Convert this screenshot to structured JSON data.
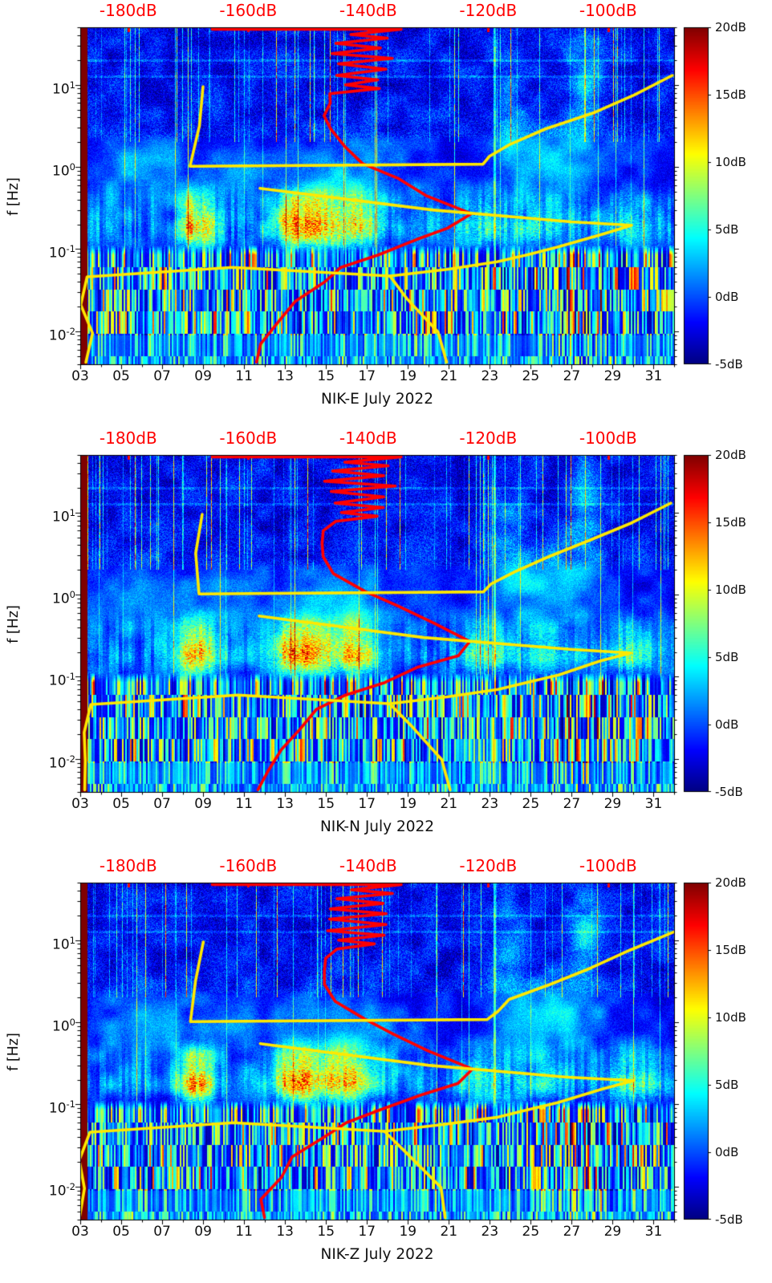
{
  "figure": {
    "background": "#ffffff"
  },
  "chart_data": {
    "type": "heatmap",
    "subtype": "seismic-noise-spectrogram-with-psd-curves",
    "panels": [
      {
        "id": "NIK-E",
        "xlabel": "NIK-E July 2022"
      },
      {
        "id": "NIK-N",
        "xlabel": "NIK-N July 2022"
      },
      {
        "id": "NIK-Z",
        "xlabel": "NIK-Z July 2022"
      }
    ],
    "x_ticks": [
      "03",
      "05",
      "07",
      "09",
      "11",
      "13",
      "15",
      "17",
      "19",
      "21",
      "23",
      "25",
      "27",
      "29",
      "31"
    ],
    "x_tick_days": [
      3,
      5,
      7,
      9,
      11,
      13,
      15,
      17,
      19,
      21,
      23,
      25,
      27,
      29,
      31
    ],
    "x_range_days": [
      3,
      32
    ],
    "ylabel": "f [Hz]",
    "y_ticks": [
      {
        "base": "10",
        "exp": "1",
        "value": 10
      },
      {
        "base": "10",
        "exp": "0",
        "value": 1
      },
      {
        "base": "10",
        "exp": "-1",
        "value": 0.1
      },
      {
        "base": "10",
        "exp": "-2",
        "value": 0.01
      }
    ],
    "f_range_hz": [
      0.004,
      50
    ],
    "top_axis": {
      "ticks": [
        "-180dB",
        "-160dB",
        "-140dB",
        "-120dB",
        "-100dB"
      ],
      "values": [
        -180,
        -160,
        -140,
        -120,
        -100
      ],
      "range_db": [
        -188,
        -89
      ],
      "color": "#ff0000"
    },
    "colorbar": {
      "ticks": [
        "20dB",
        "15dB",
        "10dB",
        "5dB",
        "0dB",
        "-5dB"
      ],
      "values": [
        20,
        15,
        10,
        5,
        0,
        -5
      ],
      "range_db": [
        -5,
        20
      ],
      "colormap": "jet"
    },
    "heatmap": {
      "colormap": "jet",
      "saturated_band_days": [
        3,
        3.33
      ],
      "microseism_band_hz": [
        0.1,
        0.4
      ],
      "storm_peak_days": [
        9,
        14.2,
        16.4,
        22.6,
        29.9
      ]
    },
    "curves": {
      "red": {
        "name": "median-psd-curve",
        "color": "#ff0000",
        "points_db_hz": [
          [
            -166,
            47.5
          ],
          [
            -134.5,
            47.5
          ],
          [
            -143,
            41
          ],
          [
            -136,
            37
          ],
          [
            -146,
            32
          ],
          [
            -137,
            28
          ],
          [
            -147,
            24
          ],
          [
            -136.5,
            21
          ],
          [
            -145.5,
            18
          ],
          [
            -137,
            15.5
          ],
          [
            -146,
            13
          ],
          [
            -138,
            11.5
          ],
          [
            -144.5,
            10
          ],
          [
            -139,
            9
          ],
          [
            -146,
            7.8
          ],
          [
            -146.5,
            6
          ],
          [
            -147,
            4.2
          ],
          [
            -146.8,
            2.9
          ],
          [
            -145,
            1.8
          ],
          [
            -141.5,
            1.1
          ],
          [
            -136,
            0.72
          ],
          [
            -129.5,
            0.45
          ],
          [
            -123.5,
            0.27
          ],
          [
            -126,
            0.18
          ],
          [
            -131,
            0.13
          ],
          [
            -138,
            0.085
          ],
          [
            -143.5,
            0.06
          ],
          [
            -148,
            0.04
          ],
          [
            -152,
            0.023
          ],
          [
            -155,
            0.013
          ],
          [
            -157,
            0.007
          ],
          [
            -158,
            0.0042
          ]
        ]
      },
      "yellow": {
        "name": "mode-psd-curve",
        "color": "#ffe800",
        "paths_db_hz": [
          [
            [
              -89,
              13
            ],
            [
              -96,
              7.5
            ],
            [
              -103,
              4.6
            ],
            [
              -110,
              2.9
            ],
            [
              -116,
              1.9
            ],
            [
              -119,
              1.35
            ],
            [
              -120.5,
              1.08
            ],
            [
              -169,
              1.02
            ],
            [
              -168.5,
              3.2
            ],
            [
              -167.5,
              9.5
            ]
          ],
          [
            [
              -158,
              0.55
            ],
            [
              -130,
              0.3
            ],
            [
              -106,
              0.215
            ],
            [
              -96.5,
              0.195
            ],
            [
              -101,
              0.155
            ],
            [
              -108,
              0.105
            ],
            [
              -113,
              0.085
            ],
            [
              -119,
              0.07
            ],
            [
              -127,
              0.057
            ],
            [
              -137,
              0.047
            ],
            [
              -162,
              0.06
            ],
            [
              -187,
              0.046
            ],
            [
              -188,
              0.021
            ],
            [
              -186.5,
              0.0095
            ],
            [
              -187.5,
              0.0042
            ]
          ],
          [
            [
              -137,
              0.047
            ],
            [
              -133,
              0.025
            ],
            [
              -128.5,
              0.0098
            ],
            [
              -127,
              0.0042
            ]
          ]
        ]
      }
    }
  }
}
